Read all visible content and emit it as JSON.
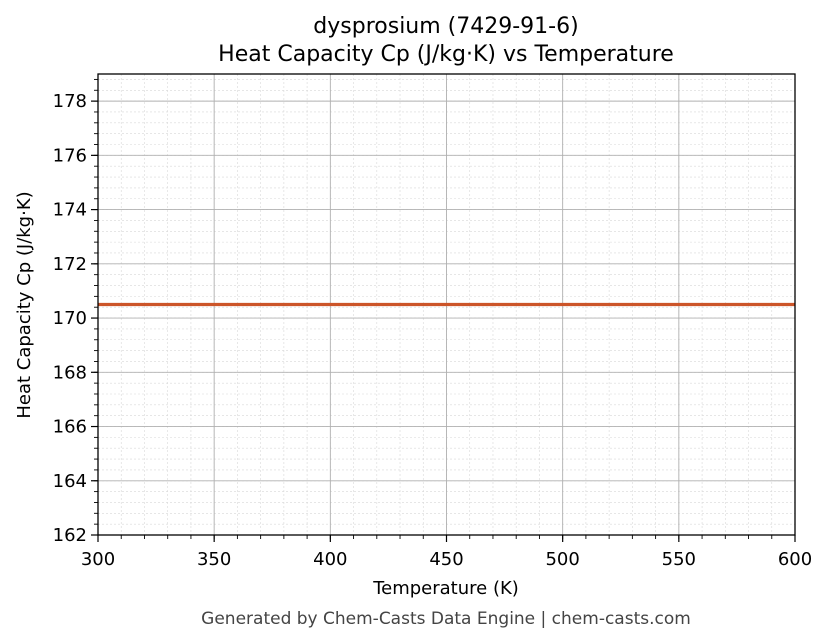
{
  "chart_data": {
    "type": "line",
    "title": "dysprosium (7429-91-6)",
    "subtitle": "Heat Capacity Cp (J/kg·K) vs Temperature",
    "xlabel": "Temperature (K)",
    "ylabel": "Heat Capacity Cp (J/kg·K)",
    "xlim": [
      300,
      600
    ],
    "ylim": [
      162,
      179
    ],
    "x_ticks": [
      300,
      350,
      400,
      450,
      500,
      550,
      600
    ],
    "y_ticks": [
      162,
      164,
      166,
      168,
      170,
      172,
      174,
      176,
      178
    ],
    "x_tick_labels": [
      "300",
      "350",
      "400",
      "450",
      "500",
      "550",
      "600"
    ],
    "y_tick_labels": [
      "162",
      "164",
      "166",
      "168",
      "170",
      "172",
      "174",
      "176",
      "178"
    ],
    "grid": true,
    "minor_grid": true,
    "series": [
      {
        "color": "#cc5529",
        "x": [
          300,
          600
        ],
        "y": [
          170.5,
          170.5
        ]
      }
    ]
  },
  "footer": "Generated by Chem-Casts Data Engine | chem-casts.com"
}
